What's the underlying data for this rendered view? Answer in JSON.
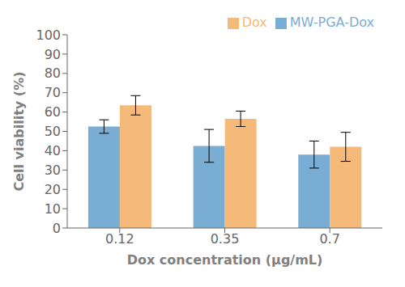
{
  "chart_data": {
    "type": "bar",
    "categories": [
      "0.12",
      "0.35",
      "0.7"
    ],
    "series": [
      {
        "name": "MW-PGA-Dox",
        "color": "#7aadd4",
        "values": [
          52.5,
          42.5,
          38.0
        ],
        "errors": [
          3.5,
          8.5,
          7.0
        ]
      },
      {
        "name": "Dox",
        "color": "#f5b97a",
        "values": [
          63.5,
          56.5,
          42.0
        ],
        "errors": [
          5.0,
          4.0,
          7.5
        ]
      }
    ],
    "xlabel": "Dox concentration (μg/mL)",
    "ylabel": "Cell viability (%)",
    "ylim": [
      0,
      100
    ],
    "yticks": [
      0,
      10,
      20,
      30,
      40,
      50,
      60,
      70,
      80,
      90,
      100
    ],
    "grid": false,
    "legend": "upper right"
  }
}
